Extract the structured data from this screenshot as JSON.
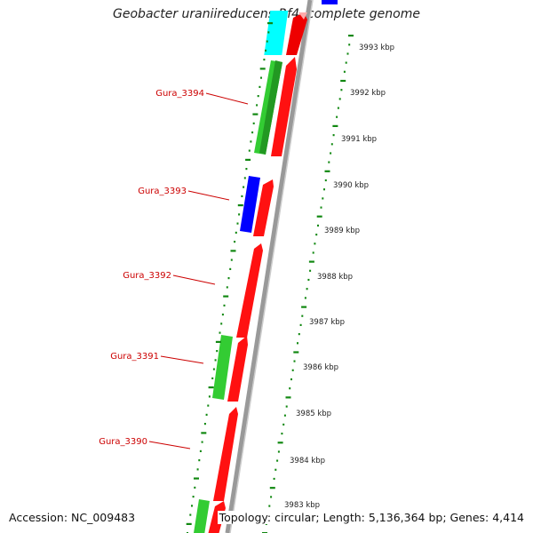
{
  "title": "Geobacter uraniireducens Rf4, complete genome",
  "footer": {
    "accession": "Accession: NC_009483",
    "summary": "Topology: circular; Length: 5,136,364 bp; Genes: 4,414"
  },
  "scale_labels": [
    "3993 kbp",
    "3992 kbp",
    "3991 kbp",
    "3990 kbp",
    "3989 kbp",
    "3988 kbp",
    "3987 kbp",
    "3986 kbp",
    "3985 kbp",
    "3984 kbp",
    "3983 kbp"
  ],
  "gene_labels": [
    "Gura_3394",
    "Gura_3393",
    "Gura_3392",
    "Gura_3391",
    "Gura_3390"
  ],
  "colors": {
    "cds": "#ff0000",
    "blue_feature": "#0000ff",
    "green_feature": "#33cc33",
    "cyan_feature": "#00ffff",
    "backbone": "#999999",
    "tick": "#118811",
    "label": "#cc0000"
  }
}
